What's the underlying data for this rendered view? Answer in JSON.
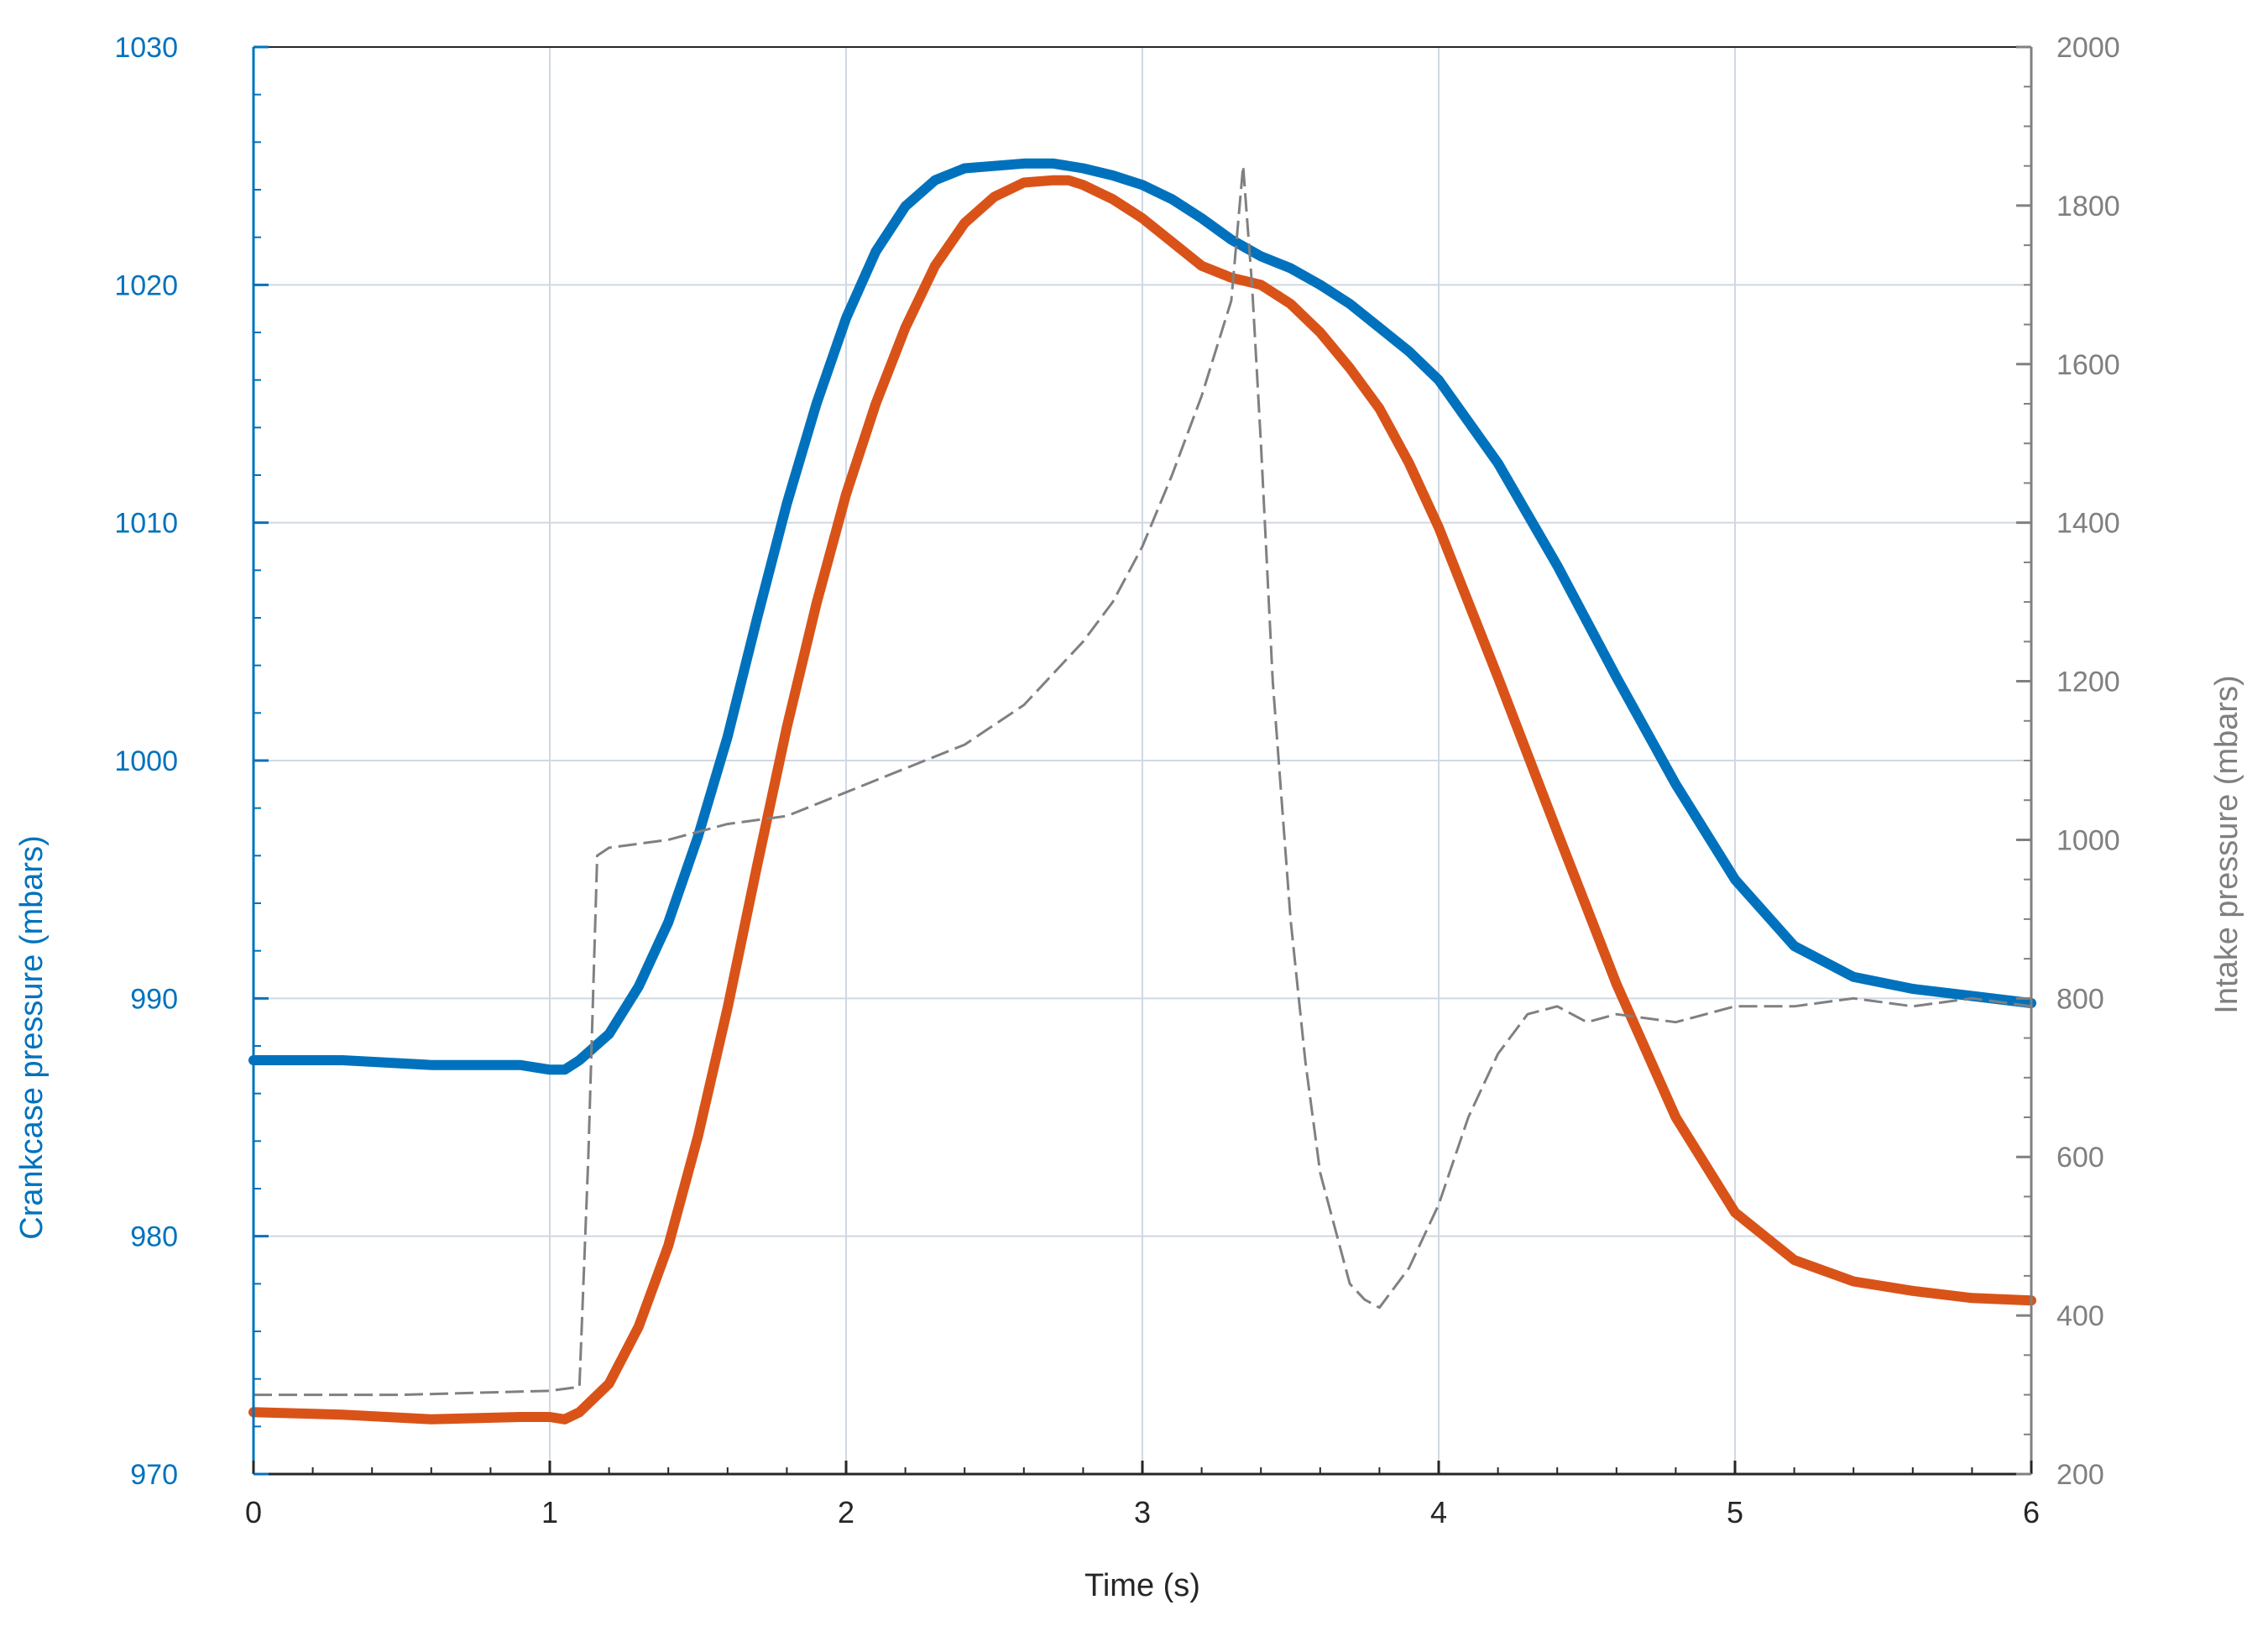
{
  "chart_data": {
    "type": "line",
    "xlabel": "Time (s)",
    "ylabel_left": "Crankcase pressure (mbars)",
    "ylabel_right": "Intake pressure (mbars)",
    "xlim": [
      0,
      6
    ],
    "ylim_left": [
      970,
      1030
    ],
    "ylim_right": [
      200,
      2000
    ],
    "x_ticks": [
      "0",
      "1",
      "2",
      "3",
      "4",
      "5",
      "6"
    ],
    "y_left_ticks": [
      "970",
      "980",
      "990",
      "1000",
      "1010",
      "1020",
      "1030"
    ],
    "y_right_ticks": [
      "200",
      "400",
      "600",
      "800",
      "1000",
      "1200",
      "1400",
      "1600",
      "1800",
      "2000"
    ],
    "grid": true,
    "colors": {
      "blue": "#0072BD",
      "orange": "#D95319",
      "gray": "#808080",
      "grid": "#d0d8e2",
      "left_axis": "#0072BD",
      "right_axis": "#808080"
    },
    "series": [
      {
        "axis": "left",
        "color": "#0072BD",
        "style": "solid",
        "x": [
          0,
          0.3,
          0.6,
          0.9,
          1.0,
          1.05,
          1.1,
          1.2,
          1.3,
          1.4,
          1.5,
          1.6,
          1.7,
          1.8,
          1.9,
          2.0,
          2.1,
          2.2,
          2.3,
          2.4,
          2.5,
          2.6,
          2.7,
          2.8,
          2.9,
          3.0,
          3.1,
          3.2,
          3.3,
          3.4,
          3.5,
          3.6,
          3.7,
          3.8,
          3.9,
          4.0,
          4.2,
          4.4,
          4.6,
          4.8,
          5.0,
          5.2,
          5.4,
          5.6,
          5.8,
          6.0
        ],
        "values": [
          987.4,
          987.4,
          987.2,
          987.2,
          987.0,
          987.0,
          987.4,
          988.5,
          990.5,
          993.2,
          996.8,
          1001.0,
          1006.0,
          1010.8,
          1015.0,
          1018.6,
          1021.4,
          1023.3,
          1024.4,
          1024.9,
          1025.0,
          1025.1,
          1025.1,
          1024.9,
          1024.6,
          1024.2,
          1023.6,
          1022.8,
          1021.9,
          1021.2,
          1020.7,
          1020.0,
          1019.2,
          1018.2,
          1017.2,
          1016.0,
          1012.5,
          1008.2,
          1003.5,
          999.0,
          995.0,
          992.2,
          990.9,
          990.4,
          990.1,
          989.8
        ]
      },
      {
        "axis": "left",
        "color": "#D95319",
        "style": "solid",
        "x": [
          0,
          0.3,
          0.6,
          0.9,
          1.0,
          1.05,
          1.1,
          1.2,
          1.3,
          1.4,
          1.5,
          1.6,
          1.7,
          1.8,
          1.9,
          2.0,
          2.1,
          2.2,
          2.3,
          2.4,
          2.5,
          2.6,
          2.7,
          2.75,
          2.8,
          2.9,
          3.0,
          3.1,
          3.2,
          3.3,
          3.4,
          3.5,
          3.6,
          3.7,
          3.8,
          3.9,
          4.0,
          4.2,
          4.4,
          4.6,
          4.8,
          5.0,
          5.2,
          5.4,
          5.6,
          5.8,
          6.0
        ],
        "values": [
          972.6,
          972.5,
          972.3,
          972.4,
          972.4,
          972.3,
          972.6,
          973.8,
          976.2,
          979.6,
          984.2,
          989.6,
          995.6,
          1001.4,
          1006.6,
          1011.2,
          1015.0,
          1018.2,
          1020.8,
          1022.6,
          1023.7,
          1024.3,
          1024.4,
          1024.4,
          1024.2,
          1023.6,
          1022.8,
          1021.8,
          1020.8,
          1020.3,
          1020.0,
          1019.2,
          1018.0,
          1016.5,
          1014.8,
          1012.5,
          1009.8,
          1003.5,
          997.0,
          990.6,
          985.0,
          981.0,
          979.0,
          978.1,
          977.7,
          977.4,
          977.3
        ]
      },
      {
        "axis": "right",
        "color": "#808080",
        "style": "dashed",
        "x": [
          0,
          0.5,
          1.0,
          1.1,
          1.13,
          1.16,
          1.2,
          1.4,
          1.6,
          1.8,
          2.0,
          2.2,
          2.4,
          2.6,
          2.8,
          2.9,
          3.0,
          3.1,
          3.2,
          3.3,
          3.34,
          3.37,
          3.4,
          3.44,
          3.5,
          3.55,
          3.6,
          3.7,
          3.75,
          3.8,
          3.9,
          4.0,
          4.1,
          4.2,
          4.3,
          4.4,
          4.5,
          4.6,
          4.8,
          5.0,
          5.2,
          5.4,
          5.6,
          5.8,
          6.0
        ],
        "values": [
          300,
          300,
          305,
          310,
          600,
          980,
          990,
          1000,
          1020,
          1030,
          1060,
          1090,
          1120,
          1170,
          1250,
          1300,
          1370,
          1460,
          1560,
          1680,
          1850,
          1700,
          1500,
          1200,
          900,
          720,
          580,
          440,
          420,
          410,
          460,
          540,
          650,
          730,
          780,
          790,
          770,
          780,
          770,
          790,
          790,
          800,
          790,
          800,
          790
        ]
      }
    ]
  }
}
